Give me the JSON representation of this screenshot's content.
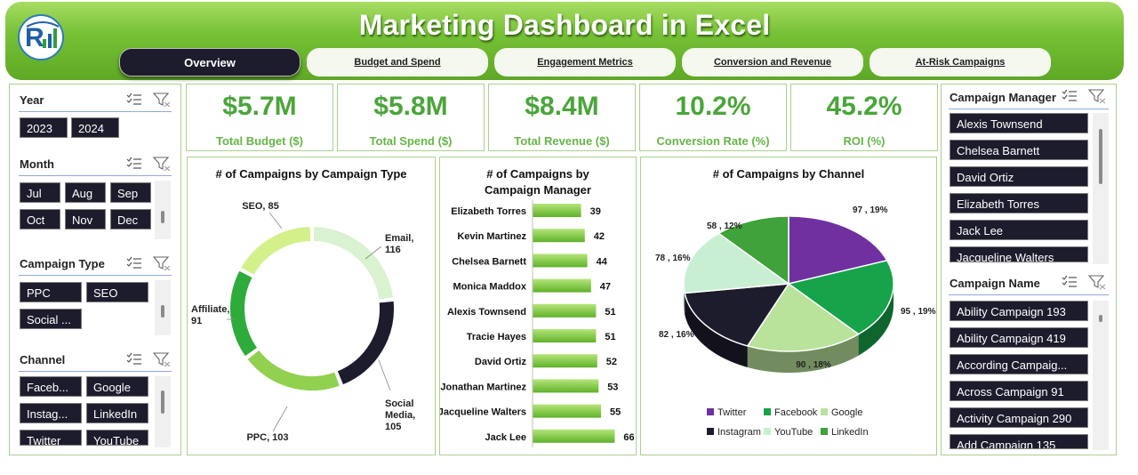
{
  "header": {
    "title": "Marketing Dashboard in Excel"
  },
  "tabs": [
    {
      "label": "Overview",
      "active": true
    },
    {
      "label": "Budget and Spend",
      "active": false
    },
    {
      "label": "Engagement Metrics",
      "active": false
    },
    {
      "label": "Conversion and Revenue",
      "active": false
    },
    {
      "label": "At-Risk Campaigns",
      "active": false
    }
  ],
  "slicers_left": {
    "year": {
      "title": "Year",
      "items": [
        "2023",
        "2024"
      ]
    },
    "month": {
      "title": "Month",
      "items": [
        "Jul",
        "Aug",
        "Sep",
        "Oct",
        "Nov",
        "Dec"
      ]
    },
    "campaign_type": {
      "title": "Campaign Type",
      "items": [
        "PPC",
        "SEO",
        "Social ..."
      ]
    },
    "channel": {
      "title": "Channel",
      "items": [
        "Faceb...",
        "Google",
        "Instag...",
        "LinkedIn",
        "Twitter",
        "YouTube"
      ]
    }
  },
  "slicers_right": {
    "campaign_manager": {
      "title": "Campaign Manager",
      "items": [
        "Alexis Townsend",
        "Chelsea Barnett",
        "David Ortiz",
        "Elizabeth Torres",
        "Jack Lee",
        "Jacqueline Walters"
      ]
    },
    "campaign_name": {
      "title": "Campaign Name",
      "items": [
        "Ability Campaign 193",
        "Ability Campaign 419",
        "According Campaig...",
        "Across Campaign 91",
        "Activity Campaign 290",
        "Add Campaign 135"
      ]
    }
  },
  "kpis": [
    {
      "value": "$5.7M",
      "label": "Total Budget ($)"
    },
    {
      "value": "$5.8M",
      "label": "Total Spend ($)"
    },
    {
      "value": "$8.4M",
      "label": "Total Revenue ($)"
    },
    {
      "value": "10.2%",
      "label": "Conversion Rate (%)"
    },
    {
      "value": "45.2%",
      "label": "ROI (%)"
    }
  ],
  "colors": {
    "dark": "#1d1c2d",
    "green": "#4aa53a",
    "panel_border": "#a9d08e"
  },
  "chart_data": [
    {
      "type": "pie",
      "variant": "doughnut",
      "title": "# of Campaigns by Campaign Type",
      "slices": [
        {
          "name": "Email",
          "value": 116,
          "label": "Email,\n116",
          "color": "#d9f2d0"
        },
        {
          "name": "Social Media",
          "value": 105,
          "label": "Social\nMedia,\n105",
          "color": "#1d1c2d"
        },
        {
          "name": "PPC",
          "value": 103,
          "label": "PPC, 103",
          "color": "#92d050"
        },
        {
          "name": "Affiliate",
          "value": 91,
          "label": "Affiliate,\n91",
          "color": "#2eab3a"
        },
        {
          "name": "SEO",
          "value": 85,
          "label": "SEO, 85",
          "color": "#d3f08a"
        }
      ]
    },
    {
      "type": "bar",
      "orientation": "horizontal",
      "title": "# of Campaigns by\nCampaign Manager",
      "categories": [
        "Elizabeth Torres",
        "Kevin Martinez",
        "Chelsea Barnett",
        "Monica Maddox",
        "Alexis Townsend",
        "Tracie Hayes",
        "David Ortiz",
        "Jonathan Martinez",
        "Jacqueline Walters",
        "Jack Lee"
      ],
      "values": [
        39,
        42,
        44,
        47,
        51,
        51,
        52,
        53,
        55,
        66
      ]
    },
    {
      "type": "pie",
      "variant": "3d",
      "title": "# of Campaigns by Channel",
      "slices": [
        {
          "name": "Twitter",
          "value": 97,
          "label": "97 , 19%",
          "color": "#7030a0"
        },
        {
          "name": "Facebook",
          "value": 95,
          "label": "95 , 19%",
          "color": "#16a34a"
        },
        {
          "name": "Google",
          "value": 90,
          "label": "90 , 18%",
          "color": "#b9e29a"
        },
        {
          "name": "Instagram",
          "value": 82,
          "label": "82 , 16%",
          "color": "#1d1c2d"
        },
        {
          "name": "YouTube",
          "value": 78,
          "label": "78 , 16%",
          "color": "#c9efd2"
        },
        {
          "name": "LinkedIn",
          "value": 58,
          "label": "58 , 12%",
          "color": "#3fa23a"
        }
      ],
      "legend": [
        "Twitter",
        "Facebook",
        "Google",
        "Instagram",
        "YouTube",
        "LinkedIn"
      ],
      "legend_position": "bottom"
    }
  ]
}
